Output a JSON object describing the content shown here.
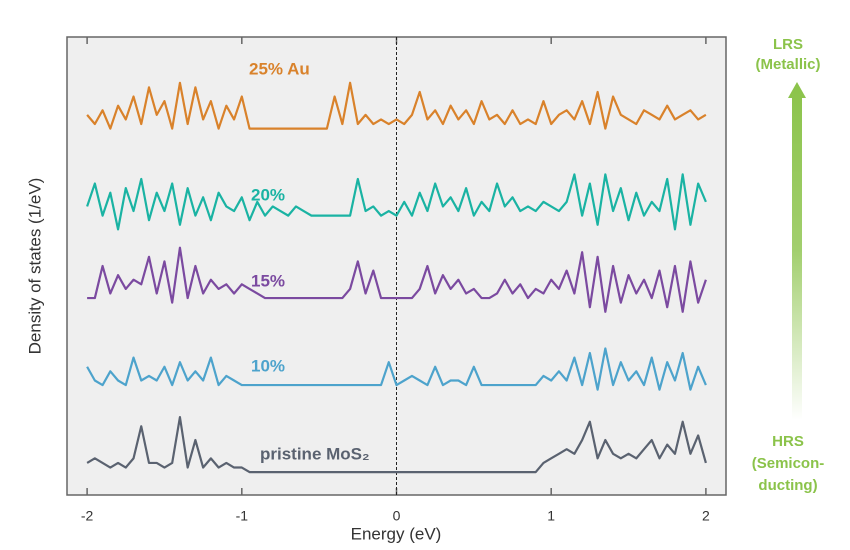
{
  "chart_data": {
    "type": "line",
    "xlabel": "Energy (eV)",
    "ylabel": "Density of states (1/eV)",
    "xlim": [
      -2.13,
      2.13
    ],
    "ylim": [
      0,
      100
    ],
    "xticks": [
      -2,
      -1,
      0,
      1,
      2
    ],
    "zero_line": true,
    "x": [
      -2,
      -1.95,
      -1.9,
      -1.85,
      -1.8,
      -1.75,
      -1.7,
      -1.65,
      -1.6,
      -1.55,
      -1.5,
      -1.45,
      -1.4,
      -1.35,
      -1.3,
      -1.25,
      -1.2,
      -1.15,
      -1.1,
      -1.05,
      -1,
      -0.95,
      -0.9,
      -0.85,
      -0.8,
      -0.75,
      -0.7,
      -0.65,
      -0.6,
      -0.55,
      -0.5,
      -0.45,
      -0.4,
      -0.35,
      -0.3,
      -0.25,
      -0.2,
      -0.15,
      -0.1,
      -0.05,
      0,
      0.05,
      0.1,
      0.15,
      0.2,
      0.25,
      0.3,
      0.35,
      0.4,
      0.45,
      0.5,
      0.55,
      0.6,
      0.65,
      0.7,
      0.75,
      0.8,
      0.85,
      0.9,
      0.95,
      1,
      1.05,
      1.1,
      1.15,
      1.2,
      1.25,
      1.3,
      1.35,
      1.4,
      1.45,
      1.5,
      1.55,
      1.6,
      1.65,
      1.7,
      1.75,
      1.8,
      1.85,
      1.9,
      1.95,
      2
    ],
    "series": [
      {
        "name": "25% Au",
        "color": "#d9822b",
        "values": [
          83,
          81,
          84,
          80,
          85,
          82,
          87,
          81,
          89,
          83,
          86,
          80,
          90,
          81,
          89,
          82,
          86,
          80,
          85,
          82,
          87,
          80,
          80,
          80,
          80,
          80,
          80,
          80,
          80,
          80,
          80,
          80,
          87,
          81,
          90,
          81,
          83,
          81,
          82,
          81,
          82,
          81,
          83,
          88,
          82,
          84,
          81,
          85,
          82,
          84,
          81,
          86,
          82,
          83,
          81,
          84,
          81,
          82,
          81,
          86,
          81,
          83,
          84,
          82,
          86,
          81,
          88,
          80,
          87,
          83,
          82,
          81,
          84,
          83,
          82,
          85,
          82,
          83,
          84,
          82,
          83
        ]
      },
      {
        "name": "20%",
        "color": "#1ab3a3",
        "values": [
          63,
          68,
          61,
          66,
          58,
          67,
          62,
          69,
          60,
          66,
          62,
          68,
          59,
          67,
          61,
          65,
          60,
          66,
          63,
          62,
          65,
          60,
          64,
          61,
          63,
          62,
          61,
          63,
          62,
          61,
          61,
          61,
          61,
          61,
          61,
          69,
          62,
          63,
          61,
          62,
          61,
          64,
          61,
          66,
          62,
          68,
          63,
          65,
          62,
          67,
          61,
          64,
          62,
          68,
          63,
          65,
          62,
          63,
          62,
          64,
          63,
          62,
          64,
          70,
          61,
          68,
          59,
          70,
          62,
          67,
          60,
          66,
          61,
          64,
          62,
          69,
          58,
          70,
          59,
          68,
          64
        ]
      },
      {
        "name": "15%",
        "color": "#7b4aa0",
        "values": [
          43,
          43,
          50,
          44,
          48,
          45,
          47,
          46,
          52,
          44,
          51,
          42,
          54,
          43,
          50,
          44,
          47,
          45,
          46,
          44,
          46,
          45,
          44,
          43,
          43,
          43,
          43,
          43,
          43,
          43,
          43,
          43,
          43,
          43,
          45,
          51,
          44,
          49,
          43,
          43,
          43,
          43,
          43,
          45,
          50,
          44,
          48,
          45,
          47,
          44,
          45,
          43,
          43,
          44,
          47,
          44,
          46,
          43,
          45,
          44,
          47,
          45,
          49,
          44,
          53,
          41,
          52,
          40,
          50,
          42,
          48,
          44,
          47,
          43,
          49,
          41,
          50,
          40,
          51,
          42,
          47
        ]
      },
      {
        "name": "10%",
        "color": "#4da3cc",
        "values": [
          28,
          25,
          24,
          27,
          25,
          24,
          30,
          25,
          26,
          25,
          28,
          24,
          29,
          25,
          27,
          25,
          30,
          24,
          26,
          25,
          24,
          24,
          24,
          24,
          24,
          24,
          24,
          24,
          24,
          24,
          24,
          24,
          24,
          24,
          24,
          24,
          24,
          24,
          24,
          29,
          24,
          25,
          26,
          25,
          24,
          28,
          24,
          25,
          25,
          24,
          28,
          24,
          24,
          24,
          24,
          24,
          24,
          24,
          24,
          26,
          25,
          27,
          25,
          30,
          24,
          31,
          23,
          32,
          24,
          29,
          25,
          27,
          24,
          30,
          23,
          29,
          25,
          31,
          23,
          28,
          24
        ]
      },
      {
        "name": "pristine MoS₂",
        "color": "#5a6270",
        "values": [
          7,
          8,
          7,
          6,
          7,
          6,
          8,
          15,
          7,
          7,
          6,
          7,
          17,
          6,
          12,
          6,
          8,
          6,
          7,
          6,
          6,
          5,
          5,
          5,
          5,
          5,
          5,
          5,
          5,
          5,
          5,
          5,
          5,
          5,
          5,
          5,
          5,
          5,
          5,
          5,
          5,
          5,
          5,
          5,
          5,
          5,
          5,
          5,
          5,
          5,
          5,
          5,
          5,
          5,
          5,
          5,
          5,
          5,
          5,
          7,
          8,
          9,
          10,
          9,
          12,
          16,
          8,
          12,
          9,
          8,
          9,
          8,
          10,
          12,
          8,
          11,
          9,
          16,
          9,
          13,
          7
        ]
      }
    ],
    "side_labels": {
      "top": [
        "LRS",
        "(Metallic)"
      ],
      "bottom": [
        "HRS",
        "(Semicon-",
        "ducting)"
      ]
    }
  }
}
